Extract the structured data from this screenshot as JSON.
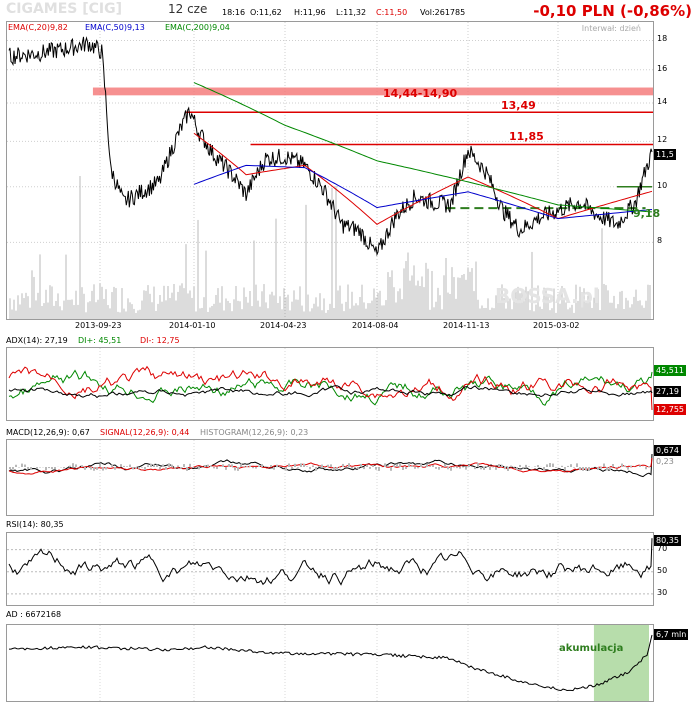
{
  "header": {
    "ticker": "CIGAMES [CIG]",
    "date": "12 cze",
    "time": "18:16",
    "open": "O:11,62",
    "high": "H:11,96",
    "low": "L:11,32",
    "close": "C:11,50",
    "volume": "Vol:261785",
    "change": "-0,10 PLN (-0,86%)",
    "interval": "Interwał: dzień",
    "watermark": "BOSSA.pl"
  },
  "main": {
    "ema20_label": "EMA(C,20)9,82",
    "ema50_label": "EMA(C,50)9,13",
    "ema200_label": "EMA(C,200)9,04",
    "price_tag": "11,5",
    "ann_zone": "14,44-14,90",
    "ann_1349": "13,49",
    "ann_1185": "11,85",
    "ann_918": "9,18",
    "xticks": [
      "2013-09-23",
      "2014-01-10",
      "2014-04-23",
      "2014-08-04",
      "2014-11-13",
      "2015-03-02"
    ],
    "yticks": [
      "18",
      "16",
      "14",
      "12",
      "10",
      "8"
    ]
  },
  "adx": {
    "label": "ADX(14): 27,19",
    "di_plus": "DI+: 45,51",
    "di_minus": "DI-: 12,75",
    "tag_plus": "45,511",
    "tag_adx": "27,19",
    "tag_minus": "12,755"
  },
  "macd": {
    "label": "MACD(12,26,9): 0,67",
    "signal": "SIGNAL(12,26,9): 0,44",
    "hist": "HISTOGRAM(12,26,9): 0,23",
    "tag": "0,674",
    "tag2": "0,23"
  },
  "rsi": {
    "label": "RSI(14): 80,35",
    "tag": "80,35",
    "yticks": [
      "70",
      "50",
      "30"
    ]
  },
  "ad": {
    "label": "AD : 6672168",
    "tag": "6,7 mln",
    "ann": "akumulacja"
  },
  "colors": {
    "price": "#000000",
    "ema20": "#dd0000",
    "ema50": "#0000cc",
    "ema200": "#008800",
    "zone": "#f47c7c",
    "annotation_red": "#dd0000",
    "annotation_green": "#2e7d1e",
    "accum": "#9fd28f"
  },
  "chart_data": [
    {
      "type": "line",
      "title": "CIGAMES [CIG]",
      "x_range": [
        "2013-06-12",
        "2015-06-12"
      ],
      "ylim": [
        6,
        19
      ],
      "y_scale": "log",
      "xticks": [
        "2013-09-23",
        "2014-01-10",
        "2014-04-23",
        "2014-08-04",
        "2014-11-13",
        "2015-03-02"
      ],
      "series": [
        {
          "name": "price",
          "x": [
            "2013-06-12",
            "2013-07-15",
            "2013-08-15",
            "2013-09-10",
            "2013-09-25",
            "2013-10-05",
            "2013-10-20",
            "2013-11-10",
            "2013-12-01",
            "2013-12-20",
            "2014-01-05",
            "2014-01-15",
            "2014-02-01",
            "2014-02-20",
            "2014-03-10",
            "2014-04-01",
            "2014-04-23",
            "2014-05-15",
            "2014-06-05",
            "2014-06-25",
            "2014-07-15",
            "2014-08-04",
            "2014-08-25",
            "2014-09-15",
            "2014-10-05",
            "2014-10-25",
            "2014-11-13",
            "2014-12-05",
            "2014-12-25",
            "2015-01-15",
            "2015-02-05",
            "2015-03-02",
            "2015-03-25",
            "2015-04-15",
            "2015-05-05",
            "2015-05-25",
            "2015-06-12"
          ],
          "values": [
            16.9,
            17.1,
            17.4,
            17.8,
            17.2,
            10.8,
            9.4,
            9.8,
            10.2,
            12.1,
            13.6,
            12.5,
            11.4,
            10.6,
            9.7,
            11.2,
            11.3,
            10.9,
            9.9,
            8.6,
            8.4,
            7.6,
            8.9,
            9.6,
            9.4,
            9.3,
            11.6,
            10.6,
            9.1,
            8.4,
            8.8,
            9.1,
            9.4,
            8.9,
            8.6,
            9.4,
            11.5
          ]
        },
        {
          "name": "EMA(C,20)",
          "x": [
            "2014-01-10",
            "2014-03-10",
            "2014-05-15",
            "2014-08-04",
            "2014-11-13",
            "2015-03-02",
            "2015-06-12"
          ],
          "values": [
            12.4,
            10.5,
            10.9,
            8.6,
            10.4,
            8.8,
            9.82
          ]
        },
        {
          "name": "EMA(C,50)",
          "x": [
            "2014-01-10",
            "2014-03-10",
            "2014-05-15",
            "2014-08-04",
            "2014-11-13",
            "2015-03-02",
            "2015-06-12"
          ],
          "values": [
            10.1,
            10.9,
            10.8,
            9.2,
            9.8,
            8.8,
            9.13
          ]
        },
        {
          "name": "EMA(C,200)",
          "x": [
            "2014-01-10",
            "2014-04-23",
            "2014-08-04",
            "2014-11-13",
            "2015-03-02",
            "2015-06-12"
          ],
          "values": [
            15.2,
            12.8,
            11.1,
            10.2,
            9.3,
            9.04
          ]
        }
      ],
      "annotations": [
        "14,44-14,90",
        "13,49",
        "11,85",
        "9,18"
      ]
    },
    {
      "type": "line",
      "title": "ADX(14)",
      "series": [
        {
          "name": "ADX",
          "last": 27.19
        },
        {
          "name": "DI+",
          "last": 45.51
        },
        {
          "name": "DI-",
          "last": 12.75
        }
      ]
    },
    {
      "type": "line",
      "title": "MACD(12,26,9)",
      "series": [
        {
          "name": "MACD",
          "last": 0.67
        },
        {
          "name": "SIGNAL",
          "last": 0.44
        },
        {
          "name": "HISTOGRAM",
          "last": 0.23
        }
      ]
    },
    {
      "type": "line",
      "title": "RSI(14)",
      "ylim": [
        20,
        85
      ],
      "yticks": [
        30,
        50,
        70
      ],
      "series": [
        {
          "name": "RSI",
          "last": 80.35
        }
      ]
    },
    {
      "type": "line",
      "title": "AD",
      "series": [
        {
          "name": "AD",
          "last": 6672168
        }
      ]
    }
  ]
}
